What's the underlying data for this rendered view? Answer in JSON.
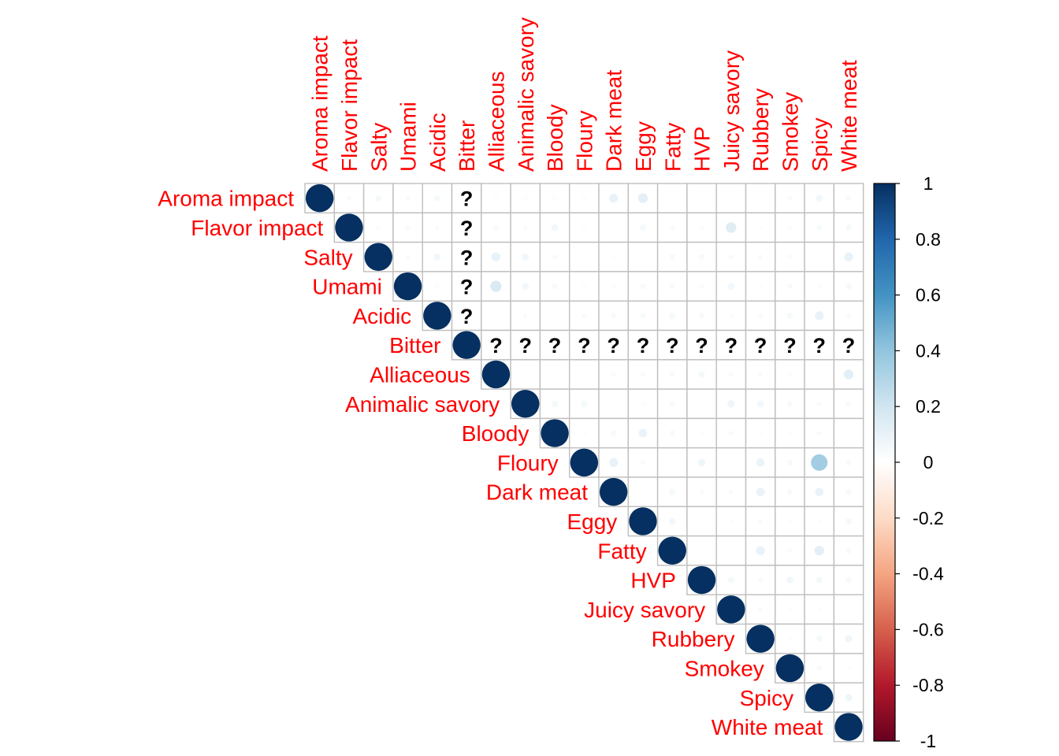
{
  "chart_data": {
    "type": "heatmap",
    "style": "upper-triangle correlation matrix, circle glyphs (size and color by correlation)",
    "variables": [
      "Aroma impact",
      "Flavor impact",
      "Salty",
      "Umami",
      "Acidic",
      "Bitter",
      "Alliaceous",
      "Animalic savory",
      "Bloody",
      "Floury",
      "Dark meat",
      "Eggy",
      "Fatty",
      "HVP",
      "Juicy savory",
      "Rubbery",
      "Smokey",
      "Spicy",
      "White meat"
    ],
    "na_symbol": "?",
    "matrix": [
      [
        1,
        0.03,
        0.05,
        0.03,
        0.05,
        null,
        0.02,
        0.02,
        0.02,
        0.02,
        0.1,
        0.12,
        0.0,
        0.0,
        0.0,
        0.0,
        0.03,
        0.06,
        0.04
      ],
      [
        0.03,
        1,
        0.02,
        0.03,
        0.03,
        null,
        0.04,
        0.03,
        0.06,
        0.02,
        0.0,
        0.05,
        0.03,
        0.02,
        0.14,
        0.02,
        0.02,
        0.04,
        0.05
      ],
      [
        0.05,
        0.02,
        1,
        0.03,
        0.06,
        null,
        0.1,
        0.06,
        0.03,
        0.02,
        0.02,
        0.01,
        0.04,
        0.04,
        0.03,
        0.03,
        0.03,
        0.0,
        0.1
      ],
      [
        0.03,
        0.03,
        0.03,
        1,
        0.02,
        null,
        0.16,
        0.06,
        0.04,
        0.02,
        0.02,
        0.04,
        0.04,
        0.03,
        0.06,
        0.02,
        0.04,
        0.02,
        0.05
      ],
      [
        0.05,
        0.03,
        0.06,
        0.02,
        1,
        null,
        0.0,
        0.03,
        0.01,
        0.03,
        0.04,
        0.04,
        0.05,
        0.04,
        0.02,
        0.03,
        0.05,
        0.1,
        0.03
      ],
      [
        null,
        null,
        null,
        null,
        null,
        1,
        null,
        null,
        null,
        null,
        null,
        null,
        null,
        null,
        null,
        null,
        null,
        null,
        null
      ],
      [
        0.02,
        0.04,
        0.1,
        0.16,
        0.0,
        null,
        1,
        0.01,
        0.01,
        0.01,
        0.03,
        0.03,
        0.04,
        0.05,
        0.03,
        0.03,
        0.02,
        0.0,
        0.12
      ],
      [
        0.02,
        0.03,
        0.06,
        0.06,
        0.03,
        null,
        0.01,
        1,
        0.05,
        0.05,
        0.01,
        0.02,
        0.04,
        0.01,
        0.07,
        0.06,
        0.04,
        0.03,
        0.04
      ],
      [
        0.02,
        0.06,
        0.03,
        0.04,
        0.01,
        null,
        0.01,
        0.05,
        1,
        0.02,
        0.04,
        0.09,
        0.04,
        0.02,
        0.03,
        0.02,
        0.02,
        0.03,
        0.01
      ],
      [
        0.02,
        0.02,
        0.02,
        0.02,
        0.03,
        null,
        0.01,
        0.05,
        0.02,
        1,
        0.1,
        0.03,
        0.01,
        0.07,
        0.01,
        0.09,
        0.04,
        0.35,
        0.04
      ],
      [
        0.1,
        0.0,
        0.02,
        0.02,
        0.04,
        null,
        0.03,
        0.01,
        0.04,
        0.1,
        1,
        0.01,
        0.05,
        0.03,
        0.03,
        0.09,
        0.04,
        0.09,
        0.04
      ],
      [
        0.12,
        0.05,
        0.01,
        0.04,
        0.04,
        null,
        0.03,
        0.02,
        0.09,
        0.03,
        0.01,
        1,
        0.06,
        0.0,
        0.02,
        0.03,
        0.02,
        0.02,
        0.05
      ],
      [
        0.0,
        0.03,
        0.04,
        0.04,
        0.05,
        null,
        0.04,
        0.04,
        0.04,
        0.01,
        0.05,
        0.06,
        1,
        0.0,
        0.0,
        0.1,
        0.03,
        0.12,
        0.04
      ],
      [
        0.0,
        0.02,
        0.04,
        0.03,
        0.04,
        null,
        0.05,
        0.01,
        0.02,
        0.07,
        0.03,
        0.0,
        0.0,
        1,
        0.05,
        0.03,
        0.06,
        0.05,
        0.04
      ],
      [
        0.0,
        0.14,
        0.03,
        0.06,
        0.02,
        null,
        0.03,
        0.07,
        0.03,
        0.01,
        0.03,
        0.02,
        0.0,
        0.05,
        1,
        0.03,
        0.02,
        0.02,
        0.01
      ],
      [
        0.0,
        0.02,
        0.03,
        0.02,
        0.03,
        null,
        0.03,
        0.06,
        0.02,
        0.09,
        0.09,
        0.03,
        0.1,
        0.03,
        0.03,
        1,
        0.02,
        0.05,
        0.07
      ],
      [
        0.03,
        0.02,
        0.03,
        0.04,
        0.05,
        null,
        0.02,
        0.04,
        0.02,
        0.04,
        0.04,
        0.02,
        0.03,
        0.06,
        0.02,
        0.02,
        1,
        0.04,
        0.02
      ],
      [
        0.06,
        0.04,
        0.0,
        0.02,
        0.1,
        null,
        0.0,
        0.03,
        0.03,
        0.35,
        0.09,
        0.02,
        0.12,
        0.05,
        0.02,
        0.05,
        0.04,
        1,
        0.07
      ],
      [
        0.04,
        0.05,
        0.1,
        0.05,
        0.03,
        null,
        0.12,
        0.04,
        0.01,
        0.04,
        0.04,
        0.05,
        0.04,
        0.04,
        0.01,
        0.07,
        0.02,
        0.07,
        1
      ]
    ],
    "colorbar": {
      "range": [
        -1,
        1
      ],
      "ticks": [
        "1",
        "0.8",
        "0.6",
        "0.4",
        "0.2",
        "0",
        "-0.2",
        "-0.4",
        "-0.6",
        "-0.8",
        "-1"
      ],
      "colors": [
        "#67001F",
        "#B2182B",
        "#D6604D",
        "#F4A582",
        "#FDDBC7",
        "#FFFFFF",
        "#D1E5F0",
        "#92C5DE",
        "#4393C3",
        "#2166AC",
        "#053061"
      ]
    },
    "label_color": "#FF0000",
    "grid_color": "#BEBEBE"
  }
}
